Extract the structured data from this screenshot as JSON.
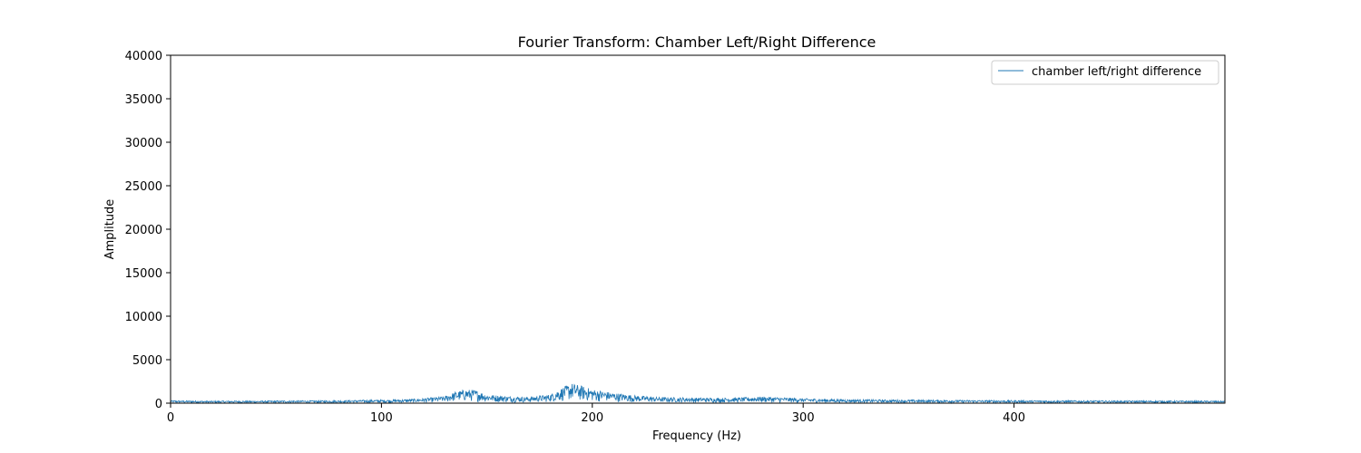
{
  "chart_data": {
    "type": "line",
    "title": "Fourier Transform: Chamber Left/Right Difference",
    "xlabel": "Frequency (Hz)",
    "ylabel": "Amplitude",
    "xlim": [
      0,
      500
    ],
    "ylim": [
      0,
      40000
    ],
    "xticks": [
      0,
      100,
      200,
      300,
      400
    ],
    "yticks": [
      0,
      5000,
      10000,
      15000,
      20000,
      25000,
      30000,
      35000,
      40000
    ],
    "grid": false,
    "legend_position": "top-right",
    "line_color": "#1f77b4",
    "series": [
      {
        "name": "chamber left/right difference",
        "x": [
          0,
          10,
          20,
          30,
          40,
          50,
          60,
          70,
          80,
          90,
          100,
          110,
          120,
          130,
          135,
          140,
          145,
          150,
          160,
          170,
          180,
          185,
          190,
          195,
          200,
          210,
          220,
          230,
          240,
          250,
          260,
          270,
          280,
          290,
          300,
          310,
          320,
          330,
          340,
          350,
          360,
          380,
          400,
          420,
          440,
          460,
          480,
          500
        ],
        "y": [
          300,
          280,
          250,
          270,
          260,
          280,
          300,
          290,
          320,
          350,
          380,
          420,
          550,
          800,
          1300,
          1600,
          1500,
          1000,
          800,
          700,
          1000,
          1700,
          2300,
          2000,
          1600,
          1200,
          900,
          700,
          650,
          620,
          600,
          640,
          750,
          650,
          550,
          480,
          450,
          420,
          400,
          380,
          370,
          340,
          320,
          300,
          290,
          280,
          270,
          260
        ]
      }
    ]
  }
}
